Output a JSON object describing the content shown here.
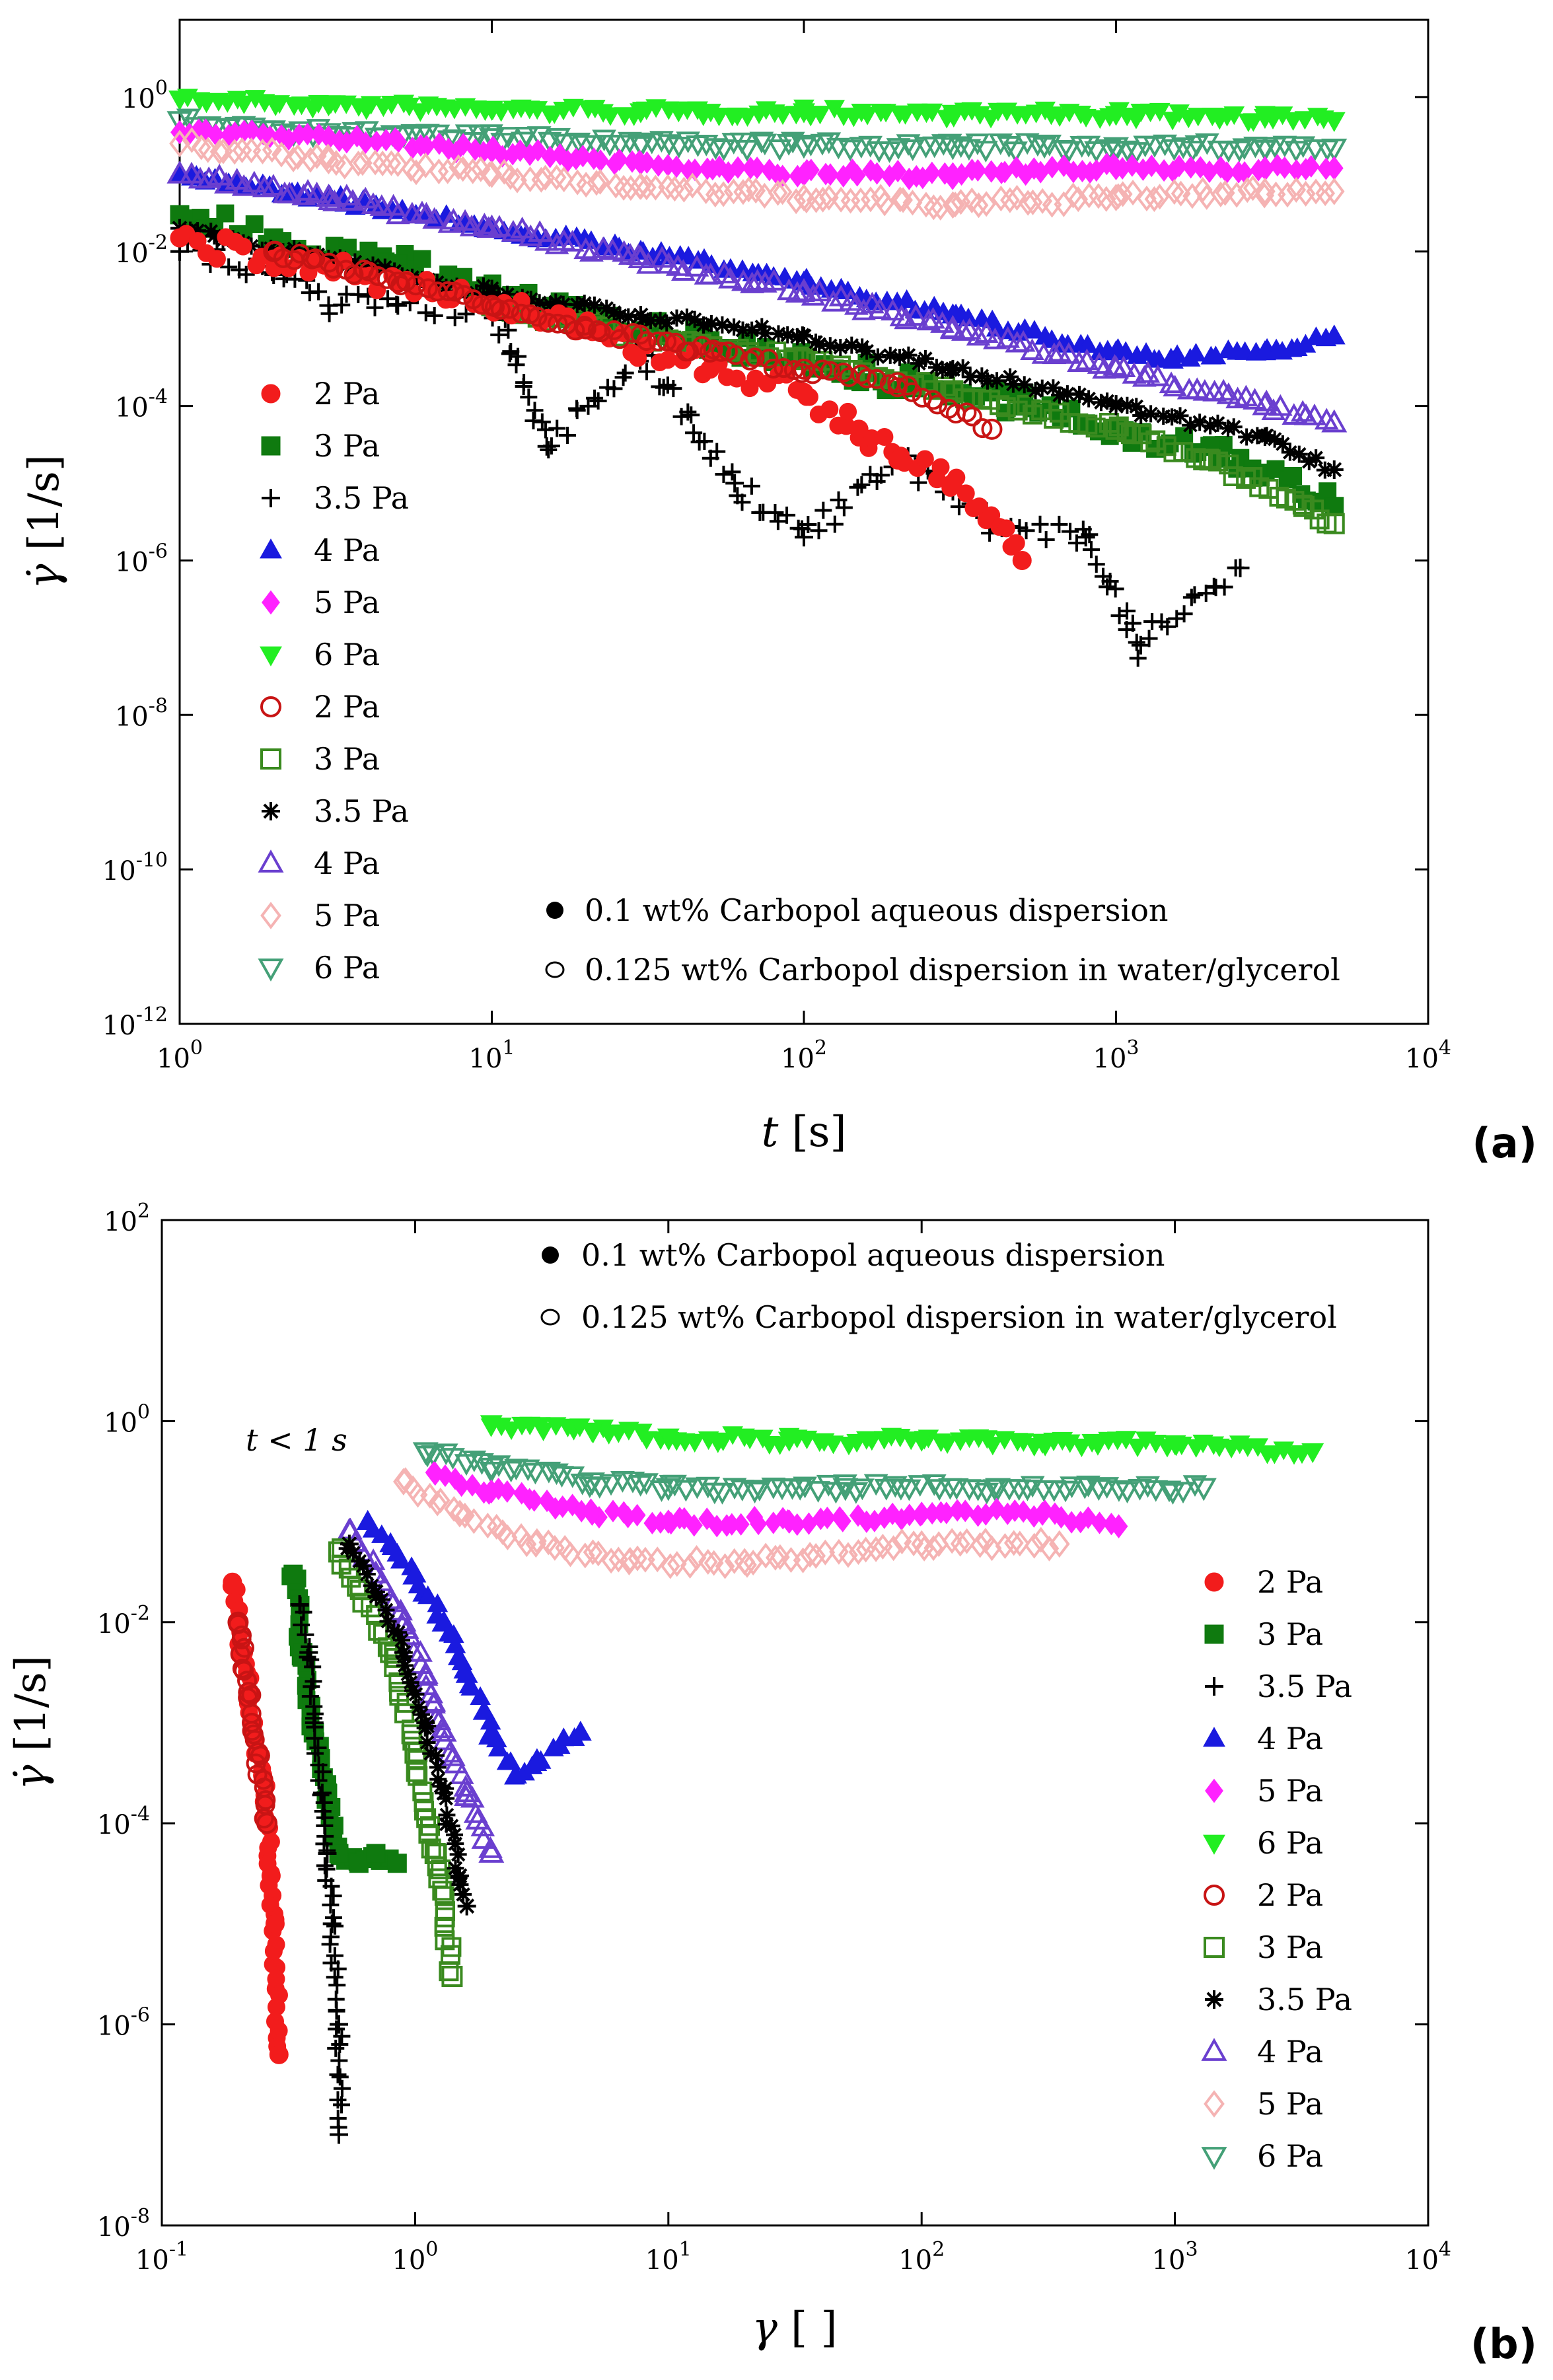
{
  "colors": {
    "2 Pa": "#f21c1c",
    "3 Pa": "#0f7a0f",
    "3.5 Pa": "#000000",
    "4 Pa": "#1a1adf",
    "5 Pa": "#ff22ff",
    "6 Pa": "#22ee22",
    "2 Pa open": "#c81414",
    "3 Pa open": "#3a8a1f",
    "3.5 Pa open": "#000000",
    "4 Pa open": "#6a3fcf",
    "5 Pa open": "#f5b3b3",
    "6 Pa open": "#44a077"
  },
  "chart_data": [
    {
      "type": "scatter",
      "panel_label": "(a)",
      "xlabel_var": "t",
      "xlabel_unit": "[s]",
      "ylabel_var": "γ̇",
      "ylabel_unit": "[1/s]",
      "xscale": "log",
      "yscale": "log",
      "xlim": [
        1,
        10000
      ],
      "ylim": [
        1e-12,
        10
      ],
      "x_ticks": [
        {
          "v": 1,
          "m": "10",
          "e": "0"
        },
        {
          "v": 10,
          "m": "10",
          "e": "1"
        },
        {
          "v": 100,
          "m": "10",
          "e": "2"
        },
        {
          "v": 1000,
          "m": "10",
          "e": "3"
        },
        {
          "v": 10000,
          "m": "10",
          "e": "4"
        }
      ],
      "y_ticks": [
        {
          "v": 1e-12,
          "m": "10",
          "e": "-12"
        },
        {
          "v": 1e-10,
          "m": "10",
          "e": "-10"
        },
        {
          "v": 1e-08,
          "m": "10",
          "e": "-8"
        },
        {
          "v": 1e-06,
          "m": "10",
          "e": "-6"
        },
        {
          "v": 0.0001,
          "m": "10",
          "e": "-4"
        },
        {
          "v": 0.01,
          "m": "10",
          "e": "-2"
        },
        {
          "v": 1,
          "m": "10",
          "e": "0"
        }
      ],
      "legend_position": "left",
      "legend": [
        "2 Pa",
        "3 Pa",
        "3.5 Pa",
        "4 Pa",
        "5 Pa",
        "6 Pa",
        "2 Pa",
        "3 Pa",
        "3.5 Pa",
        "4 Pa",
        "5 Pa",
        "6 Pa"
      ],
      "annotations": [
        "0.1 wt% Carbopol aqueous dispersion",
        "0.125 wt% Carbopol dispersion in water/glycerol"
      ],
      "series": [
        {
          "name": "2 Pa",
          "fill": "filled",
          "marker": "circle",
          "color_key": "2 Pa",
          "x": [
            1,
            2,
            5,
            10,
            20,
            50,
            100,
            150,
            200,
            300,
            500
          ],
          "y": [
            0.015,
            0.008,
            0.004,
            0.002,
            0.001,
            0.0003,
            0.00015,
            5e-05,
            2e-05,
            1e-05,
            1e-06
          ]
        },
        {
          "name": "3 Pa",
          "fill": "filled",
          "marker": "square",
          "color_key": "3 Pa",
          "x": [
            1,
            2,
            5,
            10,
            20,
            50,
            100,
            300,
            500,
            1000,
            2000,
            5000
          ],
          "y": [
            0.03,
            0.015,
            0.007,
            0.003,
            0.0015,
            0.0007,
            0.0004,
            0.00015,
            0.0001,
            5e-05,
            3e-05,
            5e-06
          ]
        },
        {
          "name": "3.5 Pa",
          "fill": "filled",
          "marker": "plus",
          "color_key": "3.5 Pa",
          "x": [
            1,
            2,
            3,
            5,
            10,
            15,
            30,
            60,
            100,
            200,
            400,
            800,
            1200,
            2500
          ],
          "y": [
            0.01,
            0.005,
            0.002,
            0.002,
            0.002,
            3e-05,
            0.0005,
            1e-05,
            2e-06,
            2e-05,
            3e-06,
            2e-06,
            8e-08,
            8e-07
          ]
        },
        {
          "name": "4 Pa",
          "fill": "filled",
          "marker": "triangle-up",
          "color_key": "4 Pa",
          "x": [
            1,
            3,
            10,
            30,
            100,
            300,
            1000,
            1500,
            3000,
            5000
          ],
          "y": [
            0.1,
            0.05,
            0.02,
            0.01,
            0.004,
            0.0015,
            0.0005,
            0.0004,
            0.0005,
            0.0008
          ]
        },
        {
          "name": "5 Pa",
          "fill": "filled",
          "marker": "diamond",
          "color_key": "5 Pa",
          "x": [
            1,
            3,
            10,
            30,
            100,
            300,
            1000,
            3000,
            5000
          ],
          "y": [
            0.35,
            0.3,
            0.2,
            0.14,
            0.1,
            0.1,
            0.12,
            0.12,
            0.12
          ]
        },
        {
          "name": "6 Pa",
          "fill": "filled",
          "marker": "triangle-down",
          "color_key": "6 Pa",
          "x": [
            1,
            3,
            10,
            30,
            100,
            300,
            1000,
            3000,
            5000
          ],
          "y": [
            0.95,
            0.8,
            0.7,
            0.65,
            0.65,
            0.62,
            0.6,
            0.55,
            0.5
          ]
        },
        {
          "name": "2 Pa",
          "fill": "open",
          "marker": "circle",
          "color_key": "2 Pa open",
          "x": [
            2,
            5,
            10,
            20,
            50,
            100,
            200,
            400
          ],
          "y": [
            0.01,
            0.004,
            0.002,
            0.001,
            0.0005,
            0.0003,
            0.0002,
            5e-05
          ]
        },
        {
          "name": "3 Pa",
          "fill": "open",
          "marker": "square",
          "color_key": "3 Pa open",
          "x": [
            10,
            30,
            100,
            300,
            1000,
            2000,
            4000,
            5000
          ],
          "y": [
            0.002,
            0.0008,
            0.0004,
            0.00015,
            5e-05,
            2e-05,
            5e-06,
            3e-06
          ]
        },
        {
          "name": "3.5 Pa",
          "fill": "open",
          "marker": "asterisk",
          "color_key": "3.5 Pa open",
          "x": [
            1,
            3,
            10,
            30,
            100,
            300,
            1000,
            3000,
            5000
          ],
          "y": [
            0.02,
            0.008,
            0.003,
            0.0015,
            0.0008,
            0.0003,
            0.0001,
            4e-05,
            1.5e-05
          ]
        },
        {
          "name": "4 Pa",
          "fill": "open",
          "marker": "triangle-up",
          "color_key": "4 Pa open",
          "x": [
            1,
            3,
            10,
            30,
            100,
            300,
            1000,
            3000,
            5000
          ],
          "y": [
            0.1,
            0.05,
            0.02,
            0.008,
            0.003,
            0.001,
            0.0003,
            0.0001,
            6e-05
          ]
        },
        {
          "name": "5 Pa",
          "fill": "open",
          "marker": "diamond",
          "color_key": "5 Pa open",
          "x": [
            1,
            3,
            10,
            30,
            100,
            300,
            1000,
            3000,
            5000
          ],
          "y": [
            0.25,
            0.15,
            0.1,
            0.07,
            0.05,
            0.04,
            0.05,
            0.06,
            0.06
          ]
        },
        {
          "name": "6 Pa",
          "fill": "open",
          "marker": "triangle-down",
          "color_key": "6 Pa open",
          "x": [
            1,
            3,
            10,
            30,
            100,
            300,
            1000,
            3000,
            5000
          ],
          "y": [
            0.5,
            0.35,
            0.3,
            0.25,
            0.24,
            0.23,
            0.23,
            0.23,
            0.22
          ]
        }
      ]
    },
    {
      "type": "scatter",
      "panel_label": "(b)",
      "xlabel_var": "γ",
      "xlabel_unit": "[ ]",
      "ylabel_var": "γ̇",
      "ylabel_unit": "[1/s]",
      "xscale": "log",
      "yscale": "log",
      "xlim": [
        0.1,
        10000
      ],
      "ylim": [
        1e-08,
        100
      ],
      "x_ticks": [
        {
          "v": 0.1,
          "m": "10",
          "e": "-1"
        },
        {
          "v": 1,
          "m": "10",
          "e": "0"
        },
        {
          "v": 10,
          "m": "10",
          "e": "1"
        },
        {
          "v": 100,
          "m": "10",
          "e": "2"
        },
        {
          "v": 1000,
          "m": "10",
          "e": "3"
        },
        {
          "v": 10000,
          "m": "10",
          "e": "4"
        }
      ],
      "y_ticks": [
        {
          "v": 1e-08,
          "m": "10",
          "e": "-8"
        },
        {
          "v": 1e-06,
          "m": "10",
          "e": "-6"
        },
        {
          "v": 0.0001,
          "m": "10",
          "e": "-4"
        },
        {
          "v": 0.01,
          "m": "10",
          "e": "-2"
        },
        {
          "v": 1,
          "m": "10",
          "e": "0"
        },
        {
          "v": 100,
          "m": "10",
          "e": "2"
        }
      ],
      "legend_position": "right",
      "legend": [
        "2 Pa",
        "3 Pa",
        "3.5 Pa",
        "4 Pa",
        "5 Pa",
        "6 Pa",
        "2 Pa",
        "3 Pa",
        "3.5 Pa",
        "4 Pa",
        "5 Pa",
        "6 Pa"
      ],
      "annotations": [
        "0.1 wt% Carbopol aqueous dispersion",
        "0.125 wt% Carbopol dispersion in water/glycerol",
        "t < 1 s"
      ],
      "series": [
        {
          "name": "2 Pa",
          "fill": "filled",
          "marker": "circle",
          "color_key": "2 Pa",
          "x": [
            0.19,
            0.2,
            0.21,
            0.22,
            0.23,
            0.25,
            0.26,
            0.27,
            0.28,
            0.29
          ],
          "y": [
            0.025,
            0.01,
            0.005,
            0.002,
            0.001,
            0.0003,
            0.0001,
            3e-05,
            1e-05,
            5e-07
          ]
        },
        {
          "name": "3 Pa",
          "fill": "filled",
          "marker": "square",
          "color_key": "3 Pa",
          "x": [
            0.33,
            0.36,
            0.4,
            0.45,
            0.5,
            0.6,
            0.7,
            0.85
          ],
          "y": [
            0.03,
            0.005,
            0.0008,
            0.0002,
            5e-05,
            4e-05,
            5e-05,
            4e-05
          ]
        },
        {
          "name": "3.5 Pa",
          "fill": "filled",
          "marker": "plus",
          "color_key": "3.5 Pa",
          "x": [
            0.35,
            0.38,
            0.4,
            0.43,
            0.45,
            0.47,
            0.5,
            0.5
          ],
          "y": [
            0.015,
            0.005,
            0.001,
            0.0002,
            5e-05,
            1e-05,
            1e-06,
            8e-08
          ]
        },
        {
          "name": "4 Pa",
          "fill": "filled",
          "marker": "triangle-up",
          "color_key": "4 Pa",
          "x": [
            0.65,
            0.8,
            1.0,
            1.3,
            1.6,
            2.0,
            2.5,
            3.0,
            4.5
          ],
          "y": [
            0.1,
            0.06,
            0.03,
            0.01,
            0.003,
            0.0008,
            0.0003,
            0.0004,
            0.0008
          ]
        },
        {
          "name": "5 Pa",
          "fill": "filled",
          "marker": "diamond",
          "color_key": "5 Pa",
          "x": [
            1.2,
            2,
            5,
            10,
            30,
            100,
            300,
            600
          ],
          "y": [
            0.3,
            0.2,
            0.12,
            0.1,
            0.1,
            0.12,
            0.12,
            0.09
          ]
        },
        {
          "name": "6 Pa",
          "fill": "filled",
          "marker": "triangle-down",
          "color_key": "6 Pa",
          "x": [
            2,
            5,
            10,
            30,
            100,
            300,
            1000,
            3500
          ],
          "y": [
            0.95,
            0.8,
            0.7,
            0.65,
            0.65,
            0.62,
            0.6,
            0.5
          ]
        },
        {
          "name": "2 Pa",
          "fill": "open",
          "marker": "circle",
          "color_key": "2 Pa open",
          "x": [
            0.2,
            0.22,
            0.24,
            0.26
          ],
          "y": [
            0.01,
            0.002,
            0.0005,
            0.0001
          ]
        },
        {
          "name": "3 Pa",
          "fill": "open",
          "marker": "square",
          "color_key": "3 Pa open",
          "x": [
            0.5,
            0.8,
            1.0,
            1.2,
            1.4
          ],
          "y": [
            0.05,
            0.005,
            0.0005,
            5e-05,
            3e-06
          ]
        },
        {
          "name": "3.5 Pa",
          "fill": "open",
          "marker": "asterisk",
          "color_key": "3.5 Pa open",
          "x": [
            0.55,
            0.7,
            0.9,
            1.1,
            1.3,
            1.5,
            1.6
          ],
          "y": [
            0.06,
            0.02,
            0.005,
            0.001,
            0.0002,
            3e-05,
            1.5e-05
          ]
        },
        {
          "name": "4 Pa",
          "fill": "open",
          "marker": "triangle-up",
          "color_key": "4 Pa open",
          "x": [
            0.55,
            0.7,
            0.9,
            1.1,
            1.3,
            1.6,
            2.0
          ],
          "y": [
            0.08,
            0.03,
            0.01,
            0.003,
            0.0008,
            0.0002,
            5e-05
          ]
        },
        {
          "name": "5 Pa",
          "fill": "open",
          "marker": "diamond",
          "color_key": "5 Pa open",
          "x": [
            0.9,
            1.5,
            3,
            7,
            20,
            100,
            350
          ],
          "y": [
            0.25,
            0.12,
            0.06,
            0.04,
            0.04,
            0.06,
            0.06
          ]
        },
        {
          "name": "6 Pa",
          "fill": "open",
          "marker": "triangle-down",
          "color_key": "6 Pa open",
          "x": [
            1.1,
            2,
            5,
            10,
            50,
            200,
            1300
          ],
          "y": [
            0.5,
            0.35,
            0.25,
            0.22,
            0.22,
            0.22,
            0.22
          ]
        }
      ]
    }
  ]
}
